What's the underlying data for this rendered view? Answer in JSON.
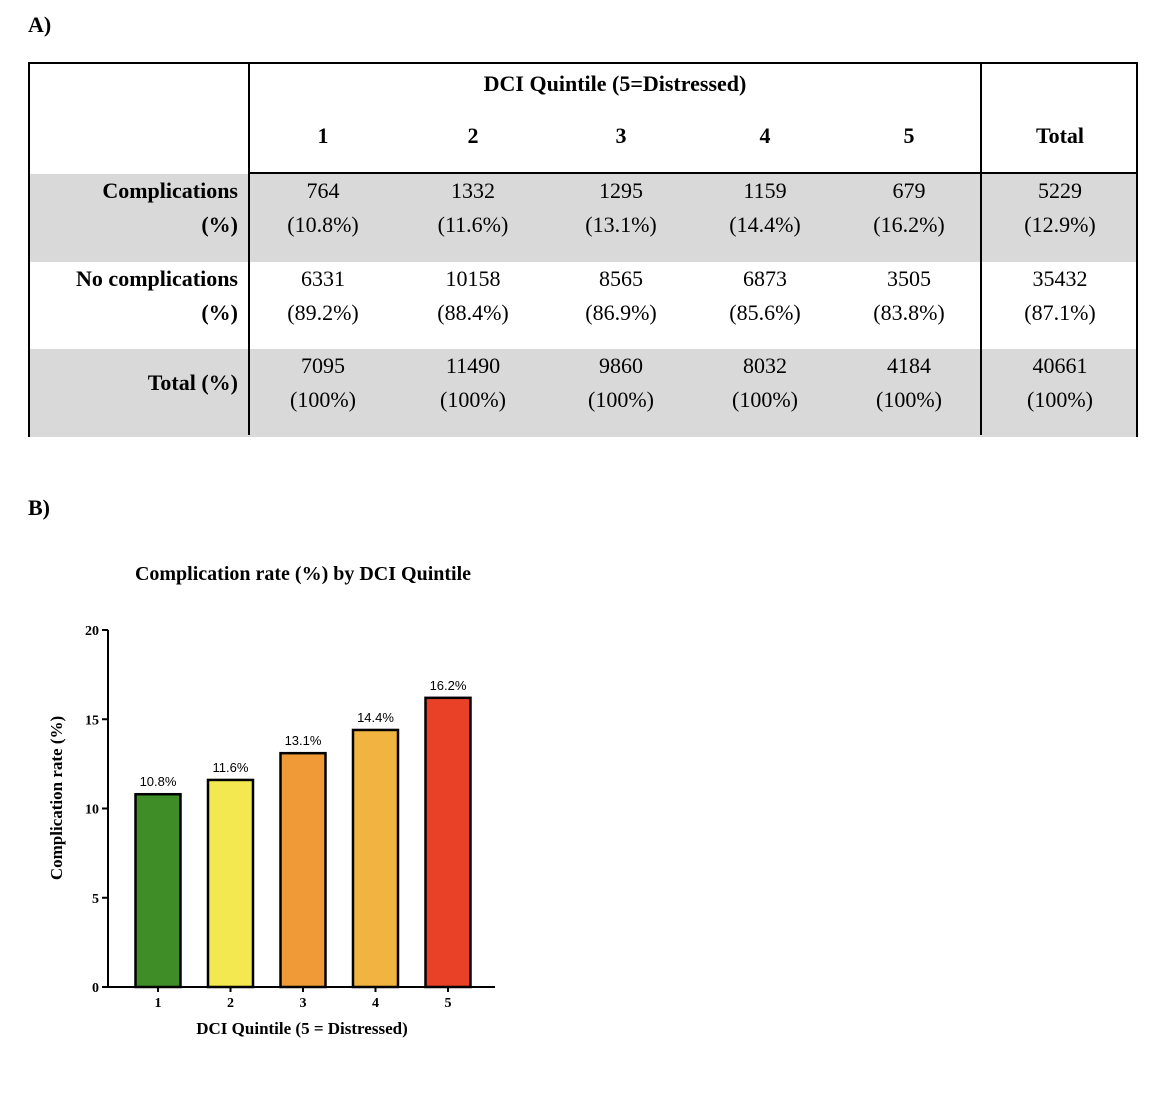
{
  "panel_a_label": "A)",
  "panel_b_label": "B)",
  "table": {
    "group_header": "DCI Quintile (5=Distressed)",
    "columns": [
      "1",
      "2",
      "3",
      "4",
      "5"
    ],
    "total_header": "Total",
    "rows": [
      {
        "label_line1": "Complications",
        "label_line2": "(%)",
        "values": [
          "764",
          "1332",
          "1295",
          "1159",
          "679"
        ],
        "percents": [
          "(10.8%)",
          "(11.6%)",
          "(13.1%)",
          "(14.4%)",
          "(16.2%)"
        ],
        "total_value": "5229",
        "total_percent": "(12.9%)",
        "shaded": true
      },
      {
        "label_line1": "No complications",
        "label_line2": "(%)",
        "values": [
          "6331",
          "10158",
          "8565",
          "6873",
          "3505"
        ],
        "percents": [
          "(89.2%)",
          "(88.4%)",
          "(86.9%)",
          "(85.6%)",
          "(83.8%)"
        ],
        "total_value": "35432",
        "total_percent": "(87.1%)",
        "shaded": false
      },
      {
        "label_line1": "Total (%)",
        "label_line2": "",
        "values": [
          "7095",
          "11490",
          "9860",
          "8032",
          "4184"
        ],
        "percents": [
          "(100%)",
          "(100%)",
          "(100%)",
          "(100%)",
          "(100%)"
        ],
        "total_value": "40661",
        "total_percent": "(100%)",
        "shaded": true
      }
    ],
    "shade_color": "#d9d9d9"
  },
  "chart_data": {
    "type": "bar",
    "title": "Complication rate (%) by DCI Quintile",
    "xlabel": "DCI Quintile (5 = Distressed)",
    "ylabel": "Complication rate (%)",
    "categories": [
      "1",
      "2",
      "3",
      "4",
      "5"
    ],
    "values": [
      10.8,
      11.6,
      13.1,
      14.4,
      16.2
    ],
    "data_labels": [
      "10.8%",
      "11.6%",
      "13.1%",
      "14.4%",
      "16.2%"
    ],
    "colors": [
      "#3f8d27",
      "#f3e84f",
      "#ef9a36",
      "#f2b441",
      "#e84127"
    ],
    "ylim": [
      0,
      20
    ],
    "yticks": [
      0,
      5,
      10,
      15,
      20
    ],
    "grid": false
  }
}
